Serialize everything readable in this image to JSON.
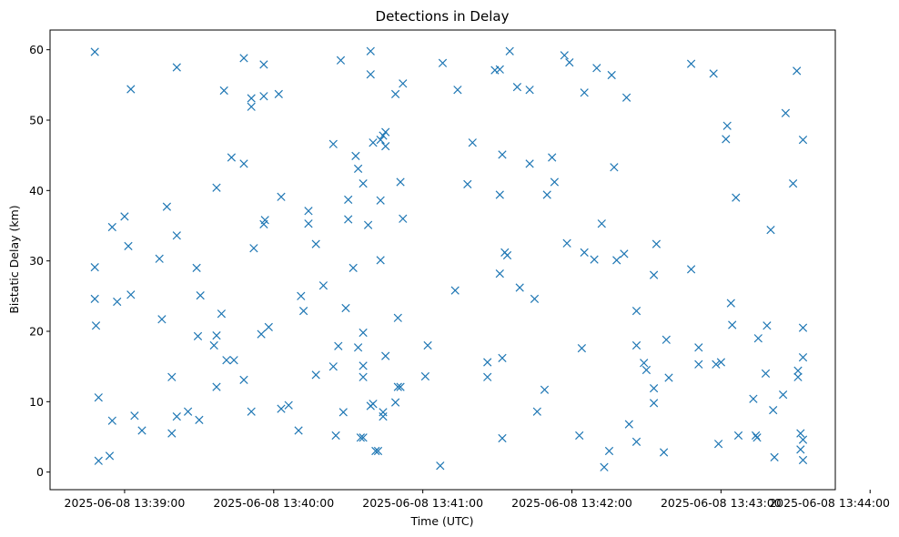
{
  "chart_data": {
    "type": "scatter",
    "title": "Detections in Delay",
    "xlabel": "Time (UTC)",
    "ylabel": "Bistatic Delay (km)",
    "x_unit": "seconds since 2025-06-08 13:38:30 UTC",
    "xlim": [
      0,
      316
    ],
    "ylim": [
      -2.5,
      62.8
    ],
    "x_ticks": [
      {
        "value": 30,
        "label": "2025-06-08 13:39:00"
      },
      {
        "value": 90,
        "label": "2025-06-08 13:40:00"
      },
      {
        "value": 150,
        "label": "2025-06-08 13:41:00"
      },
      {
        "value": 210,
        "label": "2025-06-08 13:42:00"
      },
      {
        "value": 270,
        "label": "2025-06-08 13:43:00"
      },
      {
        "value": 330,
        "label": "2025-06-08 13:44:00"
      }
    ],
    "y_ticks": [
      {
        "value": 0,
        "label": "0"
      },
      {
        "value": 10,
        "label": "10"
      },
      {
        "value": 20,
        "label": "20"
      },
      {
        "value": 30,
        "label": "30"
      },
      {
        "value": 40,
        "label": "40"
      },
      {
        "value": 50,
        "label": "50"
      },
      {
        "value": 60,
        "label": "60"
      }
    ],
    "marker": "x",
    "color": "#1f77b4",
    "series": [
      {
        "name": "detections",
        "points": [
          [
            18,
            59.7
          ],
          [
            18,
            29.1
          ],
          [
            18,
            24.6
          ],
          [
            18.5,
            20.8
          ],
          [
            19.5,
            10.6
          ],
          [
            19.5,
            1.6
          ],
          [
            24,
            2.3
          ],
          [
            25,
            34.8
          ],
          [
            25,
            7.3
          ],
          [
            27,
            24.2
          ],
          [
            30,
            36.3
          ],
          [
            31.5,
            32.1
          ],
          [
            32.5,
            25.2
          ],
          [
            32.5,
            54.4
          ],
          [
            34,
            8
          ],
          [
            37,
            5.9
          ],
          [
            44,
            30.3
          ],
          [
            45,
            21.7
          ],
          [
            47,
            37.7
          ],
          [
            49,
            13.5
          ],
          [
            49,
            5.5
          ],
          [
            51,
            33.6
          ],
          [
            51,
            7.9
          ],
          [
            51,
            57.5
          ],
          [
            55.5,
            8.6
          ],
          [
            59,
            29
          ],
          [
            59.5,
            19.3
          ],
          [
            60,
            7.4
          ],
          [
            60.5,
            25.1
          ],
          [
            66,
            18
          ],
          [
            67,
            19.4
          ],
          [
            67,
            12.1
          ],
          [
            67,
            40.4
          ],
          [
            69,
            22.5
          ],
          [
            70,
            54.2
          ],
          [
            71,
            15.9
          ],
          [
            73,
            44.7
          ],
          [
            74,
            15.9
          ],
          [
            78,
            58.8
          ],
          [
            78,
            43.8
          ],
          [
            78,
            13.1
          ],
          [
            81,
            51.9
          ],
          [
            81,
            53.1
          ],
          [
            81,
            8.6
          ],
          [
            82,
            31.8
          ],
          [
            85,
            19.6
          ],
          [
            86,
            53.4
          ],
          [
            86,
            57.9
          ],
          [
            86,
            35.2
          ],
          [
            86.5,
            35.8
          ],
          [
            88,
            20.6
          ],
          [
            92,
            53.7
          ],
          [
            93,
            39.1
          ],
          [
            93,
            9
          ],
          [
            96,
            9.5
          ],
          [
            100,
            5.9
          ],
          [
            101,
            25
          ],
          [
            102,
            22.9
          ],
          [
            104,
            35.3
          ],
          [
            104,
            37.1
          ],
          [
            107,
            32.4
          ],
          [
            107,
            13.8
          ],
          [
            110,
            26.5
          ],
          [
            114,
            15
          ],
          [
            114,
            46.6
          ],
          [
            115,
            5.2
          ],
          [
            116,
            17.9
          ],
          [
            117,
            58.5
          ],
          [
            118,
            8.5
          ],
          [
            119,
            23.3
          ],
          [
            120,
            38.7
          ],
          [
            120,
            35.9
          ],
          [
            122,
            29
          ],
          [
            123,
            44.9
          ],
          [
            124,
            43.1
          ],
          [
            124,
            17.7
          ],
          [
            125,
            4.9
          ],
          [
            126,
            41
          ],
          [
            126,
            19.8
          ],
          [
            126,
            15.1
          ],
          [
            126,
            13.5
          ],
          [
            126,
            4.9
          ],
          [
            128,
            35.1
          ],
          [
            129,
            59.8
          ],
          [
            129,
            56.5
          ],
          [
            129,
            9.4
          ],
          [
            130,
            46.8
          ],
          [
            130,
            9.7
          ],
          [
            131,
            3
          ],
          [
            132,
            3
          ],
          [
            133,
            47.2
          ],
          [
            133,
            38.6
          ],
          [
            133,
            30.1
          ],
          [
            134,
            47.8
          ],
          [
            134,
            8.5
          ],
          [
            134,
            7.9
          ],
          [
            135,
            48.3
          ],
          [
            135,
            46.3
          ],
          [
            135,
            16.5
          ],
          [
            139,
            53.7
          ],
          [
            139,
            9.9
          ],
          [
            140,
            21.9
          ],
          [
            140,
            12.1
          ],
          [
            141,
            12.1
          ],
          [
            141,
            41.2
          ],
          [
            142,
            55.2
          ],
          [
            142,
            36
          ],
          [
            151,
            13.6
          ],
          [
            152,
            18
          ],
          [
            157,
            0.9
          ],
          [
            158,
            58.1
          ],
          [
            163,
            25.8
          ],
          [
            164,
            54.3
          ],
          [
            168,
            40.9
          ],
          [
            170,
            46.8
          ],
          [
            176,
            15.6
          ],
          [
            176,
            13.5
          ],
          [
            179,
            57.1
          ],
          [
            181,
            57.2
          ],
          [
            181,
            28.2
          ],
          [
            181,
            39.4
          ],
          [
            182,
            45.1
          ],
          [
            182,
            16.2
          ],
          [
            182,
            4.8
          ],
          [
            183,
            31.2
          ],
          [
            184,
            30.8
          ],
          [
            185,
            59.8
          ],
          [
            188,
            54.7
          ],
          [
            189,
            26.2
          ],
          [
            193,
            54.3
          ],
          [
            193,
            43.8
          ],
          [
            195,
            24.6
          ],
          [
            196,
            8.6
          ],
          [
            199,
            11.7
          ],
          [
            200,
            39.4
          ],
          [
            202,
            44.7
          ],
          [
            203,
            41.2
          ],
          [
            207,
            59.2
          ],
          [
            208,
            32.5
          ],
          [
            209,
            58.2
          ],
          [
            213,
            5.2
          ],
          [
            214,
            17.6
          ],
          [
            215,
            53.9
          ],
          [
            215,
            31.2
          ],
          [
            219,
            30.2
          ],
          [
            220,
            57.4
          ],
          [
            222,
            35.3
          ],
          [
            223,
            0.7
          ],
          [
            225,
            3
          ],
          [
            226,
            56.4
          ],
          [
            227,
            43.3
          ],
          [
            228,
            30.1
          ],
          [
            231,
            31
          ],
          [
            232,
            53.2
          ],
          [
            233,
            6.8
          ],
          [
            236,
            22.9
          ],
          [
            236,
            18
          ],
          [
            236,
            4.3
          ],
          [
            239,
            15.5
          ],
          [
            240,
            14.5
          ],
          [
            243,
            28
          ],
          [
            243,
            11.9
          ],
          [
            243,
            9.8
          ],
          [
            244,
            32.4
          ],
          [
            247,
            2.8
          ],
          [
            248,
            18.8
          ],
          [
            249,
            13.4
          ],
          [
            258,
            58
          ],
          [
            258,
            28.8
          ],
          [
            261,
            17.7
          ],
          [
            261,
            15.3
          ],
          [
            267,
            56.6
          ],
          [
            268,
            15.3
          ],
          [
            269,
            4
          ],
          [
            270,
            15.6
          ],
          [
            272,
            47.3
          ],
          [
            272.5,
            49.2
          ],
          [
            274,
            24
          ],
          [
            274.5,
            20.9
          ],
          [
            276,
            39
          ],
          [
            277,
            5.2
          ],
          [
            283,
            10.4
          ],
          [
            284,
            5.2
          ],
          [
            284.5,
            4.9
          ],
          [
            285,
            19
          ],
          [
            288,
            14
          ],
          [
            288.5,
            20.8
          ],
          [
            290,
            34.4
          ],
          [
            291,
            8.8
          ],
          [
            291.5,
            2.1
          ],
          [
            295,
            11
          ],
          [
            296,
            51
          ],
          [
            299,
            41
          ],
          [
            300.5,
            57
          ],
          [
            301,
            14.4
          ],
          [
            301,
            13.5
          ],
          [
            302,
            5.5
          ],
          [
            302,
            3.2
          ],
          [
            303,
            20.5
          ],
          [
            303,
            16.3
          ],
          [
            303,
            47.2
          ],
          [
            303,
            4.6
          ],
          [
            303,
            1.7
          ]
        ]
      }
    ]
  }
}
